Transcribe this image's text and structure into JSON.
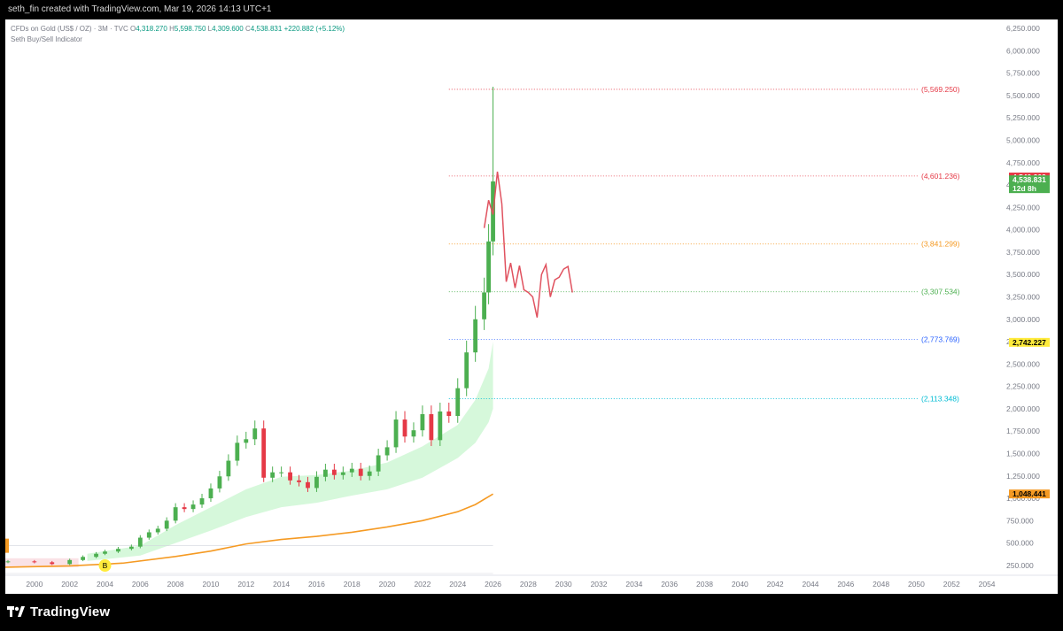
{
  "header": {
    "text": "seth_fin created with TradingView.com, Mar 19, 2026 14:13 UTC+1"
  },
  "legend": {
    "symbol": "CFDs on Gold (US$ / OZ) · 3M · TVC",
    "open_label": "O",
    "open": "4,318.270",
    "high_label": "H",
    "high": "5,598.750",
    "low_label": "L",
    "low": "4,309.600",
    "close_label": "C",
    "close": "4,538.831",
    "change": "+220.882 (+5.12%)",
    "indicator": "Seth Buy/Sell Indicator"
  },
  "footer": {
    "brand": "TradingView"
  },
  "colors": {
    "up": "#4caf50",
    "down": "#e53946",
    "projection": "#e0525f",
    "ma": "#f59a23",
    "band": "#c8f5cf",
    "axis_text": "#787b86"
  },
  "chart_data": {
    "type": "candlestick",
    "title": "CFDs on Gold (US$ / OZ) · 3M · TVC",
    "x_ticks": [
      "2000",
      "2002",
      "2004",
      "2006",
      "2008",
      "2010",
      "2012",
      "2014",
      "2016",
      "2018",
      "2020",
      "2022",
      "2024",
      "2026",
      "2028",
      "2030",
      "2032",
      "2034",
      "2036",
      "2038",
      "2040",
      "2042",
      "2044",
      "2046",
      "2048",
      "2050",
      "2052",
      "2054"
    ],
    "y_ticks": [
      "250.000",
      "500.000",
      "750.000",
      "1,000.000",
      "1,250.000",
      "1,500.000",
      "1,750.000",
      "2,000.000",
      "2,250.000",
      "2,500.000",
      "2,750.000",
      "3,000.000",
      "3,250.000",
      "3,500.000",
      "3,750.000",
      "4,000.000",
      "4,250.000",
      "4,500.000",
      "4,750.000",
      "5,000.000",
      "5,250.000",
      "5,500.000",
      "5,750.000",
      "6,000.000",
      "6,250.000"
    ],
    "ylim": [
      150,
      6350
    ],
    "xlim": [
      1998.35,
      2055
    ],
    "levels": [
      {
        "label": "(5,569.250)",
        "value": 5569.25,
        "color": "#e53946"
      },
      {
        "label": "(4,601.236)",
        "value": 4601.236,
        "color": "#e53946"
      },
      {
        "label": "(3,841.299)",
        "value": 3841.299,
        "color": "#f59a23"
      },
      {
        "label": "(3,307.534)",
        "value": 3307.534,
        "color": "#4caf50"
      },
      {
        "label": "(2,773.769)",
        "value": 2773.769,
        "color": "#2962ff"
      },
      {
        "label": "(2,113.348)",
        "value": 2113.348,
        "color": "#00bcd4"
      }
    ],
    "price_badges": [
      {
        "label": "4,540.209",
        "value": 4540.209,
        "bg": "#e53946",
        "fg": "#ffffff"
      },
      {
        "label": "4,538.831",
        "value": 4538.831,
        "sub": "12d 8h",
        "bg": "#4caf50",
        "fg": "#ffffff"
      },
      {
        "label": "2,742.227",
        "value": 2742.227,
        "bg": "#ffeb3b",
        "fg": "#000000"
      },
      {
        "label": "1,048.441",
        "value": 1048.441,
        "bg": "#f59a23",
        "fg": "#000000"
      }
    ],
    "signal": {
      "label": "B",
      "year": 2004.0,
      "color": "#ffeb3b"
    },
    "closes": [
      [
        1998.5,
        295
      ],
      [
        2000.0,
        285
      ],
      [
        2001.0,
        265
      ],
      [
        2002.0,
        310
      ],
      [
        2002.75,
        345
      ],
      [
        2003.5,
        380
      ],
      [
        2004.0,
        405
      ],
      [
        2004.75,
        435
      ],
      [
        2005.5,
        460
      ],
      [
        2006.0,
        560
      ],
      [
        2006.5,
        620
      ],
      [
        2007.0,
        660
      ],
      [
        2007.5,
        750
      ],
      [
        2008.0,
        900
      ],
      [
        2008.5,
        880
      ],
      [
        2009.0,
        930
      ],
      [
        2009.5,
        1000
      ],
      [
        2010.0,
        1110
      ],
      [
        2010.5,
        1245
      ],
      [
        2011.0,
        1420
      ],
      [
        2011.5,
        1620
      ],
      [
        2012.0,
        1660
      ],
      [
        2012.5,
        1780
      ],
      [
        2013.0,
        1230
      ],
      [
        2013.5,
        1290
      ],
      [
        2014.0,
        1290
      ],
      [
        2014.5,
        1200
      ],
      [
        2015.0,
        1180
      ],
      [
        2015.5,
        1115
      ],
      [
        2016.0,
        1240
      ],
      [
        2016.5,
        1320
      ],
      [
        2017.0,
        1260
      ],
      [
        2017.5,
        1290
      ],
      [
        2018.0,
        1330
      ],
      [
        2018.5,
        1250
      ],
      [
        2019.0,
        1300
      ],
      [
        2019.5,
        1480
      ],
      [
        2020.0,
        1570
      ],
      [
        2020.5,
        1880
      ],
      [
        2021.0,
        1690
      ],
      [
        2021.5,
        1760
      ],
      [
        2022.0,
        1940
      ],
      [
        2022.5,
        1650
      ],
      [
        2023.0,
        1970
      ],
      [
        2023.5,
        1920
      ],
      [
        2024.0,
        2230
      ],
      [
        2024.5,
        2630
      ],
      [
        2025.0,
        3000
      ],
      [
        2025.5,
        3300
      ],
      [
        2025.75,
        3870
      ],
      [
        2026.0,
        4540
      ]
    ],
    "projection": [
      [
        2025.5,
        4020
      ],
      [
        2025.75,
        4330
      ],
      [
        2026.0,
        4170
      ],
      [
        2026.25,
        4650
      ],
      [
        2026.5,
        4290
      ],
      [
        2026.75,
        3420
      ],
      [
        2027.0,
        3630
      ],
      [
        2027.25,
        3350
      ],
      [
        2027.5,
        3600
      ],
      [
        2027.75,
        3330
      ],
      [
        2028.0,
        3300
      ],
      [
        2028.25,
        3250
      ],
      [
        2028.5,
        3020
      ],
      [
        2028.75,
        3500
      ],
      [
        2029.0,
        3610
      ],
      [
        2029.25,
        3250
      ],
      [
        2029.5,
        3440
      ],
      [
        2029.75,
        3470
      ],
      [
        2030.0,
        3560
      ],
      [
        2030.25,
        3590
      ],
      [
        2030.5,
        3300
      ]
    ],
    "ma_series": [
      [
        1998.35,
        230
      ],
      [
        2002.0,
        245
      ],
      [
        2005.0,
        275
      ],
      [
        2008.0,
        350
      ],
      [
        2010.0,
        410
      ],
      [
        2012.0,
        490
      ],
      [
        2014.0,
        540
      ],
      [
        2016.0,
        575
      ],
      [
        2018.0,
        620
      ],
      [
        2020.0,
        680
      ],
      [
        2022.0,
        750
      ],
      [
        2024.0,
        850
      ],
      [
        2025.0,
        930
      ],
      [
        2026.0,
        1048
      ]
    ],
    "band_upper": [
      [
        2003.0,
        380
      ],
      [
        2006.0,
        470
      ],
      [
        2008.0,
        700
      ],
      [
        2010.0,
        900
      ],
      [
        2012.0,
        1100
      ],
      [
        2014.0,
        1240
      ],
      [
        2016.0,
        1260
      ],
      [
        2018.0,
        1310
      ],
      [
        2020.0,
        1400
      ],
      [
        2022.0,
        1580
      ],
      [
        2024.0,
        1820
      ],
      [
        2025.0,
        2100
      ],
      [
        2025.75,
        2450
      ],
      [
        2026.0,
        2750
      ]
    ],
    "band_lower": [
      [
        2003.0,
        300
      ],
      [
        2006.0,
        360
      ],
      [
        2008.0,
        500
      ],
      [
        2010.0,
        640
      ],
      [
        2012.0,
        790
      ],
      [
        2014.0,
        900
      ],
      [
        2016.0,
        950
      ],
      [
        2018.0,
        1030
      ],
      [
        2020.0,
        1100
      ],
      [
        2022.0,
        1230
      ],
      [
        2024.0,
        1450
      ],
      [
        2025.0,
        1620
      ],
      [
        2025.75,
        1850
      ],
      [
        2026.0,
        2000
      ]
    ]
  }
}
